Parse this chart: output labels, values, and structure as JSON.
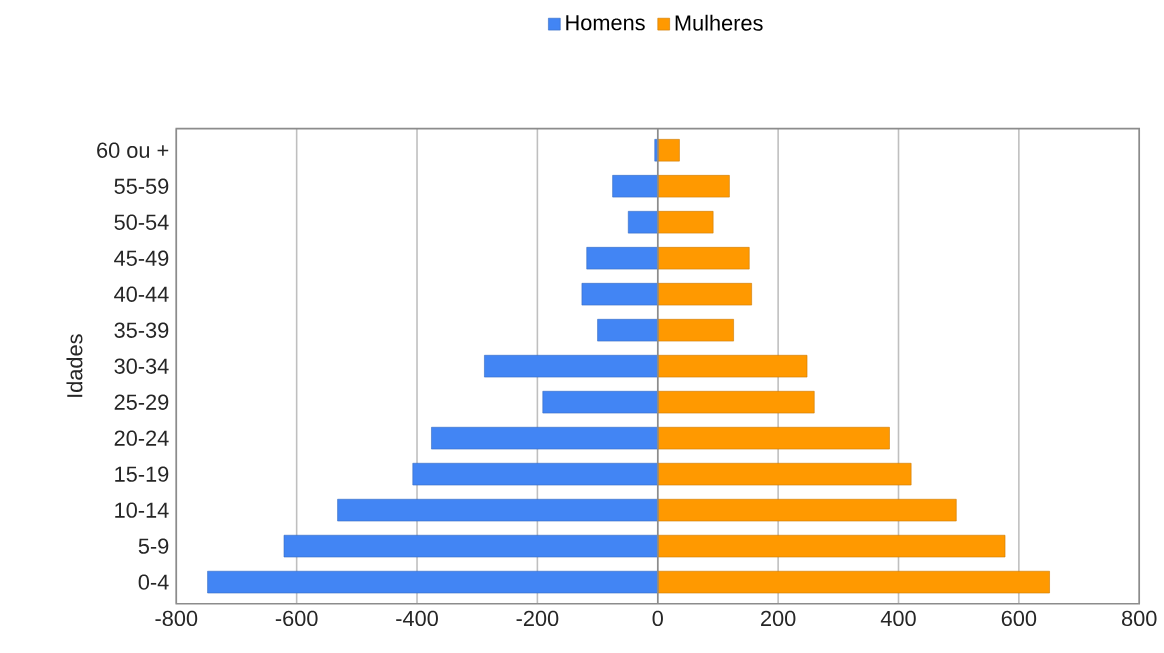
{
  "chart_data": {
    "type": "bar",
    "orientation": "horizontal",
    "ylabel": "Idades",
    "categories": [
      "60 ou +",
      "55-59",
      "50-54",
      "45-49",
      "40-44",
      "35-39",
      "30-34",
      "25-29",
      "20-24",
      "15-19",
      "10-14",
      "5-9",
      "0-4"
    ],
    "series": [
      {
        "name": "Homens",
        "color": "#4285f4",
        "values": [
          -5,
          -75,
          -49,
          -118,
          -126,
          -100,
          -288,
          -191,
          -376,
          -407,
          -532,
          -621,
          -748
        ]
      },
      {
        "name": "Mulheres",
        "color": "#ff9900",
        "values": [
          36,
          119,
          92,
          152,
          156,
          126,
          248,
          260,
          385,
          421,
          496,
          577,
          651
        ]
      }
    ],
    "xlim": [
      -800,
      800
    ],
    "xticks": [
      -800,
      -600,
      -400,
      -200,
      0,
      200,
      400,
      600,
      800
    ],
    "stacked": true,
    "grid": "x",
    "legend": "top"
  }
}
